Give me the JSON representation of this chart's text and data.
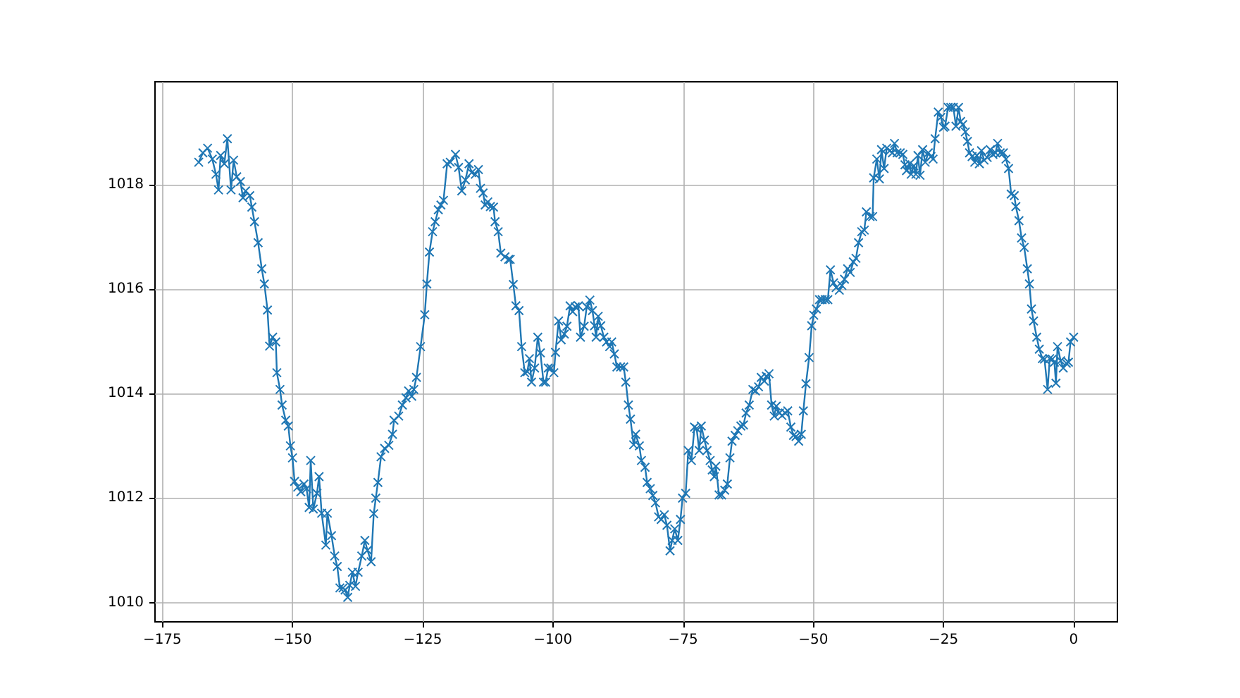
{
  "chart_data": {
    "type": "line",
    "marker": "cross",
    "line_style": "solid",
    "grid": true,
    "xlim": [
      -176.4,
      8.4
    ],
    "ylim": [
      1009.63,
      1019.97
    ],
    "xticks": [
      -175,
      -150,
      -125,
      -100,
      -75,
      -50,
      -25,
      0
    ],
    "yticks": [
      1010,
      1012,
      1014,
      1016,
      1018
    ],
    "series": [
      {
        "color": "#1f77b4",
        "x": [
          -168,
          -167.2,
          -166.3,
          -165.4,
          -164.7,
          -164.2,
          -163.8,
          -163.1,
          -162.5,
          -161.8,
          -161.3,
          -160.7,
          -160,
          -159.5,
          -159,
          -158.2,
          -157.8,
          -157.3,
          -156.6,
          -155.9,
          -155.4,
          -154.8,
          -154.4,
          -153.8,
          -153.2,
          -153,
          -152.4,
          -152,
          -151.3,
          -150.8,
          -150.4,
          -150,
          -149.6,
          -149,
          -148.4,
          -147.8,
          -147.3,
          -146.8,
          -146.5,
          -146,
          -145.3,
          -144.9,
          -144.4,
          -143.6,
          -143.3,
          -142.5,
          -141.9,
          -141.4,
          -140.9,
          -140.3,
          -139.9,
          -139.4,
          -139,
          -138.5,
          -137.9,
          -137.4,
          -136.7,
          -136.1,
          -135.6,
          -134.9,
          -134.4,
          -134,
          -133.6,
          -133,
          -132.3,
          -131.5,
          -130.8,
          -130.5,
          -129.6,
          -128.9,
          -128.2,
          -127.7,
          -127.1,
          -126.7,
          -126.2,
          -125.4,
          -124.6,
          -124.2,
          -123.7,
          -123.1,
          -122.6,
          -122,
          -121.5,
          -121,
          -120.3,
          -119.7,
          -118.7,
          -118.1,
          -117.5,
          -116.8,
          -116.1,
          -115.6,
          -114.9,
          -114.3,
          -113.9,
          -113.4,
          -113,
          -112.5,
          -112,
          -111.4,
          -111.1,
          -110.5,
          -110,
          -109.2,
          -108.5,
          -108.2,
          -107.6,
          -107.1,
          -106.5,
          -106,
          -105.4,
          -104.9,
          -104.5,
          -104.1,
          -103.5,
          -102.9,
          -102.4,
          -101.8,
          -101.4,
          -100.9,
          -100.4,
          -99.8,
          -99.5,
          -98.9,
          -98.4,
          -97.8,
          -97.3,
          -96.7,
          -96.2,
          -95.7,
          -95.1,
          -94.7,
          -94,
          -93.5,
          -92.9,
          -92.4,
          -92,
          -91.7,
          -91.3,
          -90.8,
          -90.2,
          -89.7,
          -89.1,
          -88.7,
          -88.2,
          -87.7,
          -87,
          -86.4,
          -86,
          -85.5,
          -85.1,
          -84.5,
          -84.1,
          -83.4,
          -83,
          -82.3,
          -81.9,
          -81.3,
          -80.8,
          -80.3,
          -79.7,
          -79.2,
          -78.6,
          -78.1,
          -77.5,
          -77.1,
          -76.6,
          -76,
          -75.5,
          -75.1,
          -74.5,
          -74,
          -73.4,
          -72.8,
          -72.4,
          -71.9,
          -71.5,
          -70.9,
          -70.4,
          -69.8,
          -69.4,
          -69,
          -68.7,
          -68.1,
          -67.6,
          -67,
          -66.5,
          -66,
          -65.6,
          -65,
          -64.5,
          -63.9,
          -63.4,
          -62.9,
          -62.3,
          -61.6,
          -61.1,
          -60.5,
          -60,
          -59.4,
          -59,
          -58.5,
          -58,
          -57.5,
          -57.1,
          -56.5,
          -56,
          -55.4,
          -54.9,
          -54.3,
          -53.8,
          -53.3,
          -52.8,
          -52.3,
          -51.9,
          -51.4,
          -50.8,
          -50.3,
          -49.9,
          -49.4,
          -48.8,
          -48.3,
          -47.7,
          -47.2,
          -46.7,
          -46.1,
          -45.6,
          -45,
          -44.5,
          -44,
          -43.4,
          -42.9,
          -42.3,
          -41.8,
          -41.3,
          -40.7,
          -40.2,
          -39.8,
          -39.1,
          -38.6,
          -38.4,
          -37.8,
          -37.3,
          -36.9,
          -36.4,
          -35.9,
          -35.3,
          -34.8,
          -34.4,
          -33.9,
          -33.3,
          -32.8,
          -32.4,
          -32.1,
          -31.5,
          -31.2,
          -30.7,
          -30.3,
          -29.9,
          -29.5,
          -29,
          -28.5,
          -27.9,
          -27.4,
          -27,
          -26.6,
          -26,
          -25.5,
          -25,
          -24.7,
          -24.1,
          -23.6,
          -23.1,
          -22.6,
          -22.1,
          -21.7,
          -21.3,
          -20.8,
          -20.4,
          -20,
          -19.5,
          -19,
          -18.6,
          -18.1,
          -17.7,
          -17.2,
          -16.6,
          -16,
          -15.5,
          -15,
          -14.6,
          -14.1,
          -13.5,
          -13,
          -12.5,
          -12,
          -11.4,
          -11.1,
          -10.5,
          -10,
          -9.5,
          -8.9,
          -8.5,
          -8.1,
          -7.7,
          -7.1,
          -6.6,
          -6,
          -5.6,
          -5,
          -4.6,
          -4.1,
          -3.7,
          -3.4,
          -3.1,
          -2.5,
          -2,
          -1.4,
          -1,
          -0.6,
          0
        ],
        "values": [
          1018.43,
          1018.61,
          1018.7,
          1018.49,
          1018.2,
          1017.9,
          1018.56,
          1018.4,
          1018.88,
          1017.9,
          1018.47,
          1018.15,
          1018.06,
          1017.75,
          1017.88,
          1017.79,
          1017.57,
          1017.29,
          1016.89,
          1016.39,
          1016.1,
          1015.6,
          1014.91,
          1015.08,
          1014.99,
          1014.4,
          1014.08,
          1013.78,
          1013.49,
          1013.38,
          1013,
          1012.77,
          1012.32,
          1012.21,
          1012.12,
          1012.27,
          1012.18,
          1011.82,
          1012.72,
          1011.79,
          1012.09,
          1012.41,
          1011.71,
          1011.1,
          1011.71,
          1011.28,
          1010.89,
          1010.69,
          1010.28,
          1010.28,
          1010.24,
          1010.1,
          1010.33,
          1010.58,
          1010.31,
          1010.58,
          1010.89,
          1011.19,
          1011,
          1010.78,
          1011.7,
          1012,
          1012.3,
          1012.79,
          1012.95,
          1013.01,
          1013.22,
          1013.49,
          1013.57,
          1013.78,
          1013.92,
          1014.05,
          1013.95,
          1014.08,
          1014.31,
          1014.9,
          1015.51,
          1016.1,
          1016.71,
          1017.1,
          1017.29,
          1017.52,
          1017.61,
          1017.7,
          1018.4,
          1018.43,
          1018.58,
          1018.33,
          1017.88,
          1018.09,
          1018.4,
          1018.23,
          1018.2,
          1018.29,
          1017.93,
          1017.84,
          1017.61,
          1017.67,
          1017.58,
          1017.57,
          1017.29,
          1017.1,
          1016.69,
          1016.62,
          1016.57,
          1016.57,
          1016.09,
          1015.68,
          1015.59,
          1014.9,
          1014.4,
          1014.42,
          1014.67,
          1014.22,
          1014.49,
          1015.08,
          1014.78,
          1014.22,
          1014.22,
          1014.49,
          1014.49,
          1014.4,
          1014.79,
          1015.39,
          1015.03,
          1015.14,
          1015.29,
          1015.68,
          1015.57,
          1015.66,
          1015.68,
          1015.08,
          1015.29,
          1015.66,
          1015.79,
          1015.59,
          1015.3,
          1015.08,
          1015.48,
          1015.3,
          1015.08,
          1014.99,
          1014.9,
          1014.99,
          1014.76,
          1014.51,
          1014.51,
          1014.51,
          1014.22,
          1013.78,
          1013.51,
          1013.02,
          1013.22,
          1013,
          1012.72,
          1012.59,
          1012.3,
          1012.18,
          1012.05,
          1011.91,
          1011.64,
          1011.59,
          1011.68,
          1011.48,
          1010.99,
          1011.19,
          1011.41,
          1011.19,
          1011.59,
          1012,
          1012.09,
          1012.91,
          1012.72,
          1013.36,
          1013.33,
          1012.91,
          1013.38,
          1013.11,
          1012.91,
          1012.72,
          1012.54,
          1012.41,
          1012.61,
          1012.06,
          1012.06,
          1012.15,
          1012.27,
          1012.77,
          1013.09,
          1013.2,
          1013.29,
          1013.38,
          1013.4,
          1013.63,
          1013.78,
          1014.08,
          1014.05,
          1014.13,
          1014.31,
          1014.24,
          1014.33,
          1014.38,
          1013.78,
          1013.57,
          1013.76,
          1013.63,
          1013.58,
          1013.63,
          1013.67,
          1013.36,
          1013.2,
          1013.18,
          1013.09,
          1013.22,
          1013.67,
          1014.19,
          1014.69,
          1015.3,
          1015.5,
          1015.62,
          1015.8,
          1015.8,
          1015.8,
          1015.8,
          1016.37,
          1016.12,
          1016.03,
          1015.98,
          1016.07,
          1016.19,
          1016.39,
          1016.32,
          1016.52,
          1016.59,
          1016.89,
          1017.1,
          1017.13,
          1017.48,
          1017.39,
          1017.39,
          1018.13,
          1018.49,
          1018.11,
          1018.67,
          1018.31,
          1018.7,
          1018.65,
          1018.61,
          1018.79,
          1018.61,
          1018.61,
          1018.58,
          1018.38,
          1018.27,
          1018.4,
          1018.2,
          1018.36,
          1018.2,
          1018.56,
          1018.18,
          1018.67,
          1018.43,
          1018.61,
          1018.54,
          1018.49,
          1018.88,
          1019.39,
          1019.29,
          1019.1,
          1019.12,
          1019.48,
          1019.48,
          1019.48,
          1019.12,
          1019.48,
          1019.21,
          1019.15,
          1019.01,
          1018.83,
          1018.61,
          1018.54,
          1018.43,
          1018.56,
          1018.4,
          1018.65,
          1018.47,
          1018.52,
          1018.67,
          1018.58,
          1018.61,
          1018.79,
          1018.61,
          1018.61,
          1018.49,
          1018.31,
          1017.82,
          1017.79,
          1017.58,
          1017.31,
          1016.98,
          1016.8,
          1016.39,
          1016.1,
          1015.62,
          1015.39,
          1015.08,
          1014.85,
          1014.67,
          1014.66,
          1014.08,
          1014.67,
          1014.66,
          1014.6,
          1014.2,
          1014.9,
          1014.63,
          1014.49,
          1014.58,
          1014.6,
          1014.99,
          1015.08
        ]
      }
    ]
  }
}
